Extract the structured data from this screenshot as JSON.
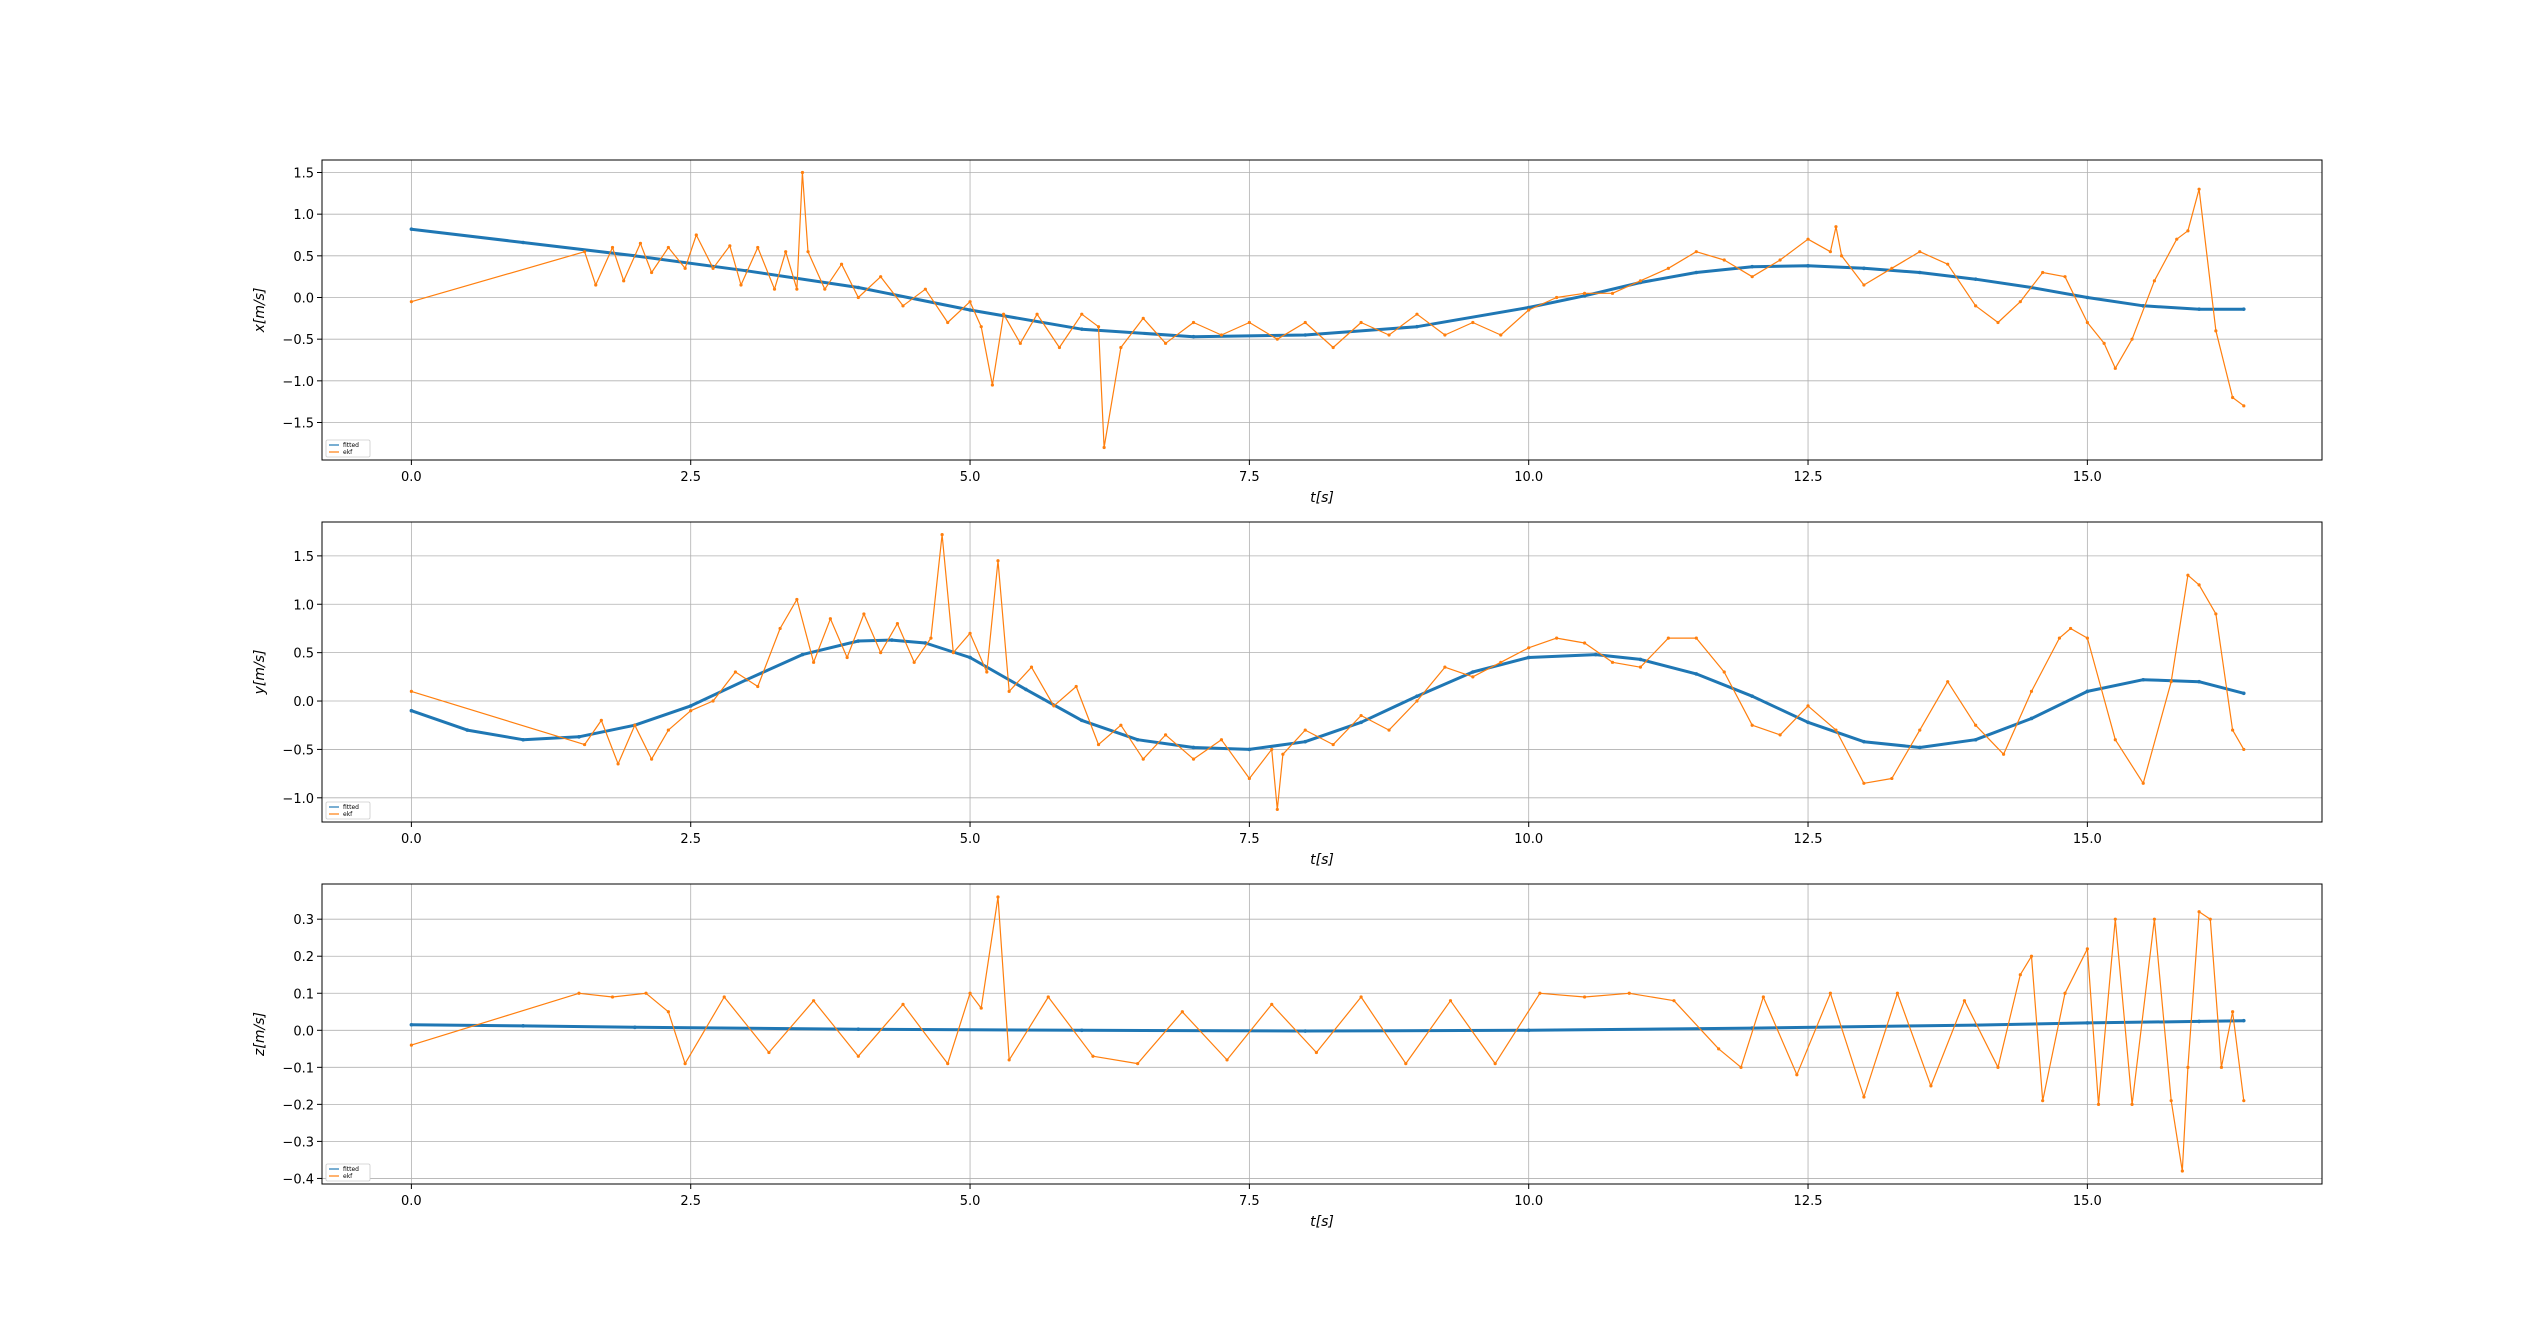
{
  "chart_data": [
    {
      "type": "line",
      "xlabel": "t[s]",
      "ylabel": "x[m/s]",
      "xlim": [
        -0.8,
        17.1
      ],
      "ylim": [
        -1.95,
        1.65
      ],
      "xticks": [
        0.0,
        2.5,
        5.0,
        7.5,
        10.0,
        12.5,
        15.0
      ],
      "xtick_labels": [
        "0.0",
        "2.5",
        "5.0",
        "7.5",
        "10.0",
        "12.5",
        "15.0"
      ],
      "yticks": [
        -1.5,
        -1.0,
        -0.5,
        0.0,
        0.5,
        1.0,
        1.5
      ],
      "ytick_labels": [
        "−1.5",
        "−1.0",
        "−0.5",
        "0.0",
        "0.5",
        "1.0",
        "1.5"
      ],
      "grid": true,
      "legend_position": "lower-left",
      "series": [
        {
          "name": "fitted",
          "color": "#1f77b4",
          "x": [
            0.0,
            1.0,
            2.0,
            3.0,
            4.0,
            5.0,
            6.0,
            7.0,
            8.0,
            9.0,
            10.0,
            10.5,
            11.0,
            11.5,
            12.0,
            12.5,
            13.0,
            13.5,
            14.0,
            14.5,
            15.0,
            15.5,
            16.0,
            16.4
          ],
          "y": [
            0.82,
            0.66,
            0.5,
            0.32,
            0.12,
            -0.15,
            -0.38,
            -0.47,
            -0.45,
            -0.35,
            -0.12,
            0.02,
            0.18,
            0.3,
            0.37,
            0.38,
            0.35,
            0.3,
            0.22,
            0.12,
            0.0,
            -0.1,
            -0.14,
            -0.14
          ]
        },
        {
          "name": "ekf",
          "color": "#ff7f0e",
          "x": [
            0.0,
            1.55,
            1.65,
            1.8,
            1.9,
            2.05,
            2.15,
            2.3,
            2.45,
            2.55,
            2.7,
            2.85,
            2.95,
            3.1,
            3.25,
            3.35,
            3.45,
            3.5,
            3.55,
            3.7,
            3.85,
            4.0,
            4.2,
            4.4,
            4.6,
            4.8,
            5.0,
            5.1,
            5.2,
            5.3,
            5.45,
            5.6,
            5.8,
            6.0,
            6.15,
            6.2,
            6.35,
            6.55,
            6.75,
            7.0,
            7.25,
            7.5,
            7.75,
            8.0,
            8.25,
            8.5,
            8.75,
            9.0,
            9.25,
            9.5,
            9.75,
            10.0,
            10.25,
            10.5,
            10.75,
            11.0,
            11.25,
            11.5,
            11.75,
            12.0,
            12.25,
            12.5,
            12.7,
            12.75,
            12.8,
            13.0,
            13.25,
            13.5,
            13.75,
            14.0,
            14.2,
            14.4,
            14.6,
            14.8,
            15.0,
            15.15,
            15.25,
            15.4,
            15.6,
            15.8,
            15.9,
            16.0,
            16.15,
            16.3,
            16.4
          ],
          "y": [
            -0.05,
            0.55,
            0.15,
            0.6,
            0.2,
            0.65,
            0.3,
            0.6,
            0.35,
            0.75,
            0.35,
            0.62,
            0.15,
            0.6,
            0.1,
            0.55,
            0.1,
            1.5,
            0.55,
            0.1,
            0.4,
            0.0,
            0.25,
            -0.1,
            0.1,
            -0.3,
            -0.05,
            -0.35,
            -1.05,
            -0.2,
            -0.55,
            -0.2,
            -0.6,
            -0.2,
            -0.35,
            -1.8,
            -0.6,
            -0.25,
            -0.55,
            -0.3,
            -0.45,
            -0.3,
            -0.5,
            -0.3,
            -0.6,
            -0.3,
            -0.45,
            -0.2,
            -0.45,
            -0.3,
            -0.45,
            -0.15,
            0.0,
            0.05,
            0.05,
            0.2,
            0.35,
            0.55,
            0.45,
            0.25,
            0.45,
            0.7,
            0.55,
            0.85,
            0.5,
            0.15,
            0.35,
            0.55,
            0.4,
            -0.1,
            -0.3,
            -0.05,
            0.3,
            0.25,
            -0.3,
            -0.55,
            -0.85,
            -0.5,
            0.2,
            0.7,
            0.8,
            1.3,
            -0.4,
            -1.2,
            -1.3
          ]
        }
      ]
    },
    {
      "type": "line",
      "xlabel": "t[s]",
      "ylabel": "y[m/s]",
      "xlim": [
        -0.8,
        17.1
      ],
      "ylim": [
        -1.25,
        1.85
      ],
      "xticks": [
        0.0,
        2.5,
        5.0,
        7.5,
        10.0,
        12.5,
        15.0
      ],
      "xtick_labels": [
        "0.0",
        "2.5",
        "5.0",
        "7.5",
        "10.0",
        "12.5",
        "15.0"
      ],
      "yticks": [
        -1.0,
        -0.5,
        0.0,
        0.5,
        1.0,
        1.5
      ],
      "ytick_labels": [
        "−1.0",
        "−0.5",
        "0.0",
        "0.5",
        "1.0",
        "1.5"
      ],
      "grid": true,
      "legend_position": "lower-left",
      "series": [
        {
          "name": "fitted",
          "color": "#1f77b4",
          "x": [
            0.0,
            0.5,
            1.0,
            1.5,
            2.0,
            2.5,
            3.0,
            3.5,
            4.0,
            4.3,
            4.6,
            5.0,
            5.5,
            6.0,
            6.5,
            7.0,
            7.5,
            8.0,
            8.5,
            9.0,
            9.5,
            10.0,
            10.6,
            11.0,
            11.5,
            12.0,
            12.5,
            13.0,
            13.5,
            14.0,
            14.5,
            15.0,
            15.5,
            16.0,
            16.4
          ],
          "y": [
            -0.1,
            -0.3,
            -0.4,
            -0.37,
            -0.25,
            -0.05,
            0.22,
            0.48,
            0.62,
            0.63,
            0.6,
            0.45,
            0.12,
            -0.2,
            -0.4,
            -0.48,
            -0.5,
            -0.42,
            -0.22,
            0.05,
            0.3,
            0.45,
            0.48,
            0.43,
            0.28,
            0.05,
            -0.22,
            -0.42,
            -0.48,
            -0.4,
            -0.18,
            0.1,
            0.22,
            0.2,
            0.08
          ]
        },
        {
          "name": "ekf",
          "color": "#ff7f0e",
          "x": [
            0.0,
            1.55,
            1.7,
            1.85,
            2.0,
            2.15,
            2.3,
            2.5,
            2.7,
            2.9,
            3.1,
            3.3,
            3.45,
            3.6,
            3.75,
            3.9,
            4.05,
            4.2,
            4.35,
            4.5,
            4.65,
            4.75,
            4.85,
            5.0,
            5.15,
            5.25,
            5.35,
            5.55,
            5.75,
            5.95,
            6.15,
            6.35,
            6.55,
            6.75,
            7.0,
            7.25,
            7.5,
            7.7,
            7.75,
            7.8,
            8.0,
            8.25,
            8.5,
            8.75,
            9.0,
            9.25,
            9.5,
            9.75,
            10.0,
            10.25,
            10.5,
            10.75,
            11.0,
            11.25,
            11.5,
            11.75,
            12.0,
            12.25,
            12.5,
            12.75,
            13.0,
            13.25,
            13.5,
            13.75,
            14.0,
            14.25,
            14.5,
            14.75,
            14.85,
            15.0,
            15.25,
            15.5,
            15.75,
            15.9,
            16.0,
            16.15,
            16.3,
            16.4
          ],
          "y": [
            0.1,
            -0.45,
            -0.2,
            -0.65,
            -0.25,
            -0.6,
            -0.3,
            -0.1,
            0.0,
            0.3,
            0.15,
            0.75,
            1.05,
            0.4,
            0.85,
            0.45,
            0.9,
            0.5,
            0.8,
            0.4,
            0.65,
            1.72,
            0.5,
            0.7,
            0.3,
            1.45,
            0.1,
            0.35,
            -0.05,
            0.15,
            -0.45,
            -0.25,
            -0.6,
            -0.35,
            -0.6,
            -0.4,
            -0.8,
            -0.5,
            -1.12,
            -0.55,
            -0.3,
            -0.45,
            -0.15,
            -0.3,
            0.0,
            0.35,
            0.25,
            0.4,
            0.55,
            0.65,
            0.6,
            0.4,
            0.35,
            0.65,
            0.65,
            0.3,
            -0.25,
            -0.35,
            -0.05,
            -0.3,
            -0.85,
            -0.8,
            -0.3,
            0.2,
            -0.25,
            -0.55,
            0.1,
            0.65,
            0.75,
            0.65,
            -0.4,
            -0.85,
            0.2,
            1.3,
            1.2,
            0.9,
            -0.3,
            -0.5
          ]
        }
      ]
    },
    {
      "type": "line",
      "xlabel": "t[s]",
      "ylabel": "z[m/s]",
      "xlim": [
        -0.8,
        17.1
      ],
      "ylim": [
        -0.415,
        0.395
      ],
      "xticks": [
        0.0,
        2.5,
        5.0,
        7.5,
        10.0,
        12.5,
        15.0
      ],
      "xtick_labels": [
        "0.0",
        "2.5",
        "5.0",
        "7.5",
        "10.0",
        "12.5",
        "15.0"
      ],
      "yticks": [
        -0.4,
        -0.3,
        -0.2,
        -0.1,
        0.0,
        0.1,
        0.2,
        0.3
      ],
      "ytick_labels": [
        "−0.4",
        "−0.3",
        "−0.2",
        "−0.1",
        "0.0",
        "0.1",
        "0.2",
        "0.3"
      ],
      "grid": true,
      "legend_position": "lower-left",
      "series": [
        {
          "name": "fitted",
          "color": "#1f77b4",
          "x": [
            0.0,
            1.0,
            2.0,
            4.0,
            6.0,
            8.0,
            10.0,
            12.0,
            14.0,
            15.0,
            16.0,
            16.4
          ],
          "y": [
            0.015,
            0.012,
            0.008,
            0.003,
            0.0,
            -0.002,
            0.0,
            0.006,
            0.014,
            0.02,
            0.024,
            0.026
          ]
        },
        {
          "name": "ekf",
          "color": "#ff7f0e",
          "x": [
            0.0,
            1.5,
            1.8,
            2.1,
            2.3,
            2.45,
            2.8,
            3.2,
            3.6,
            4.0,
            4.4,
            4.8,
            5.0,
            5.1,
            5.25,
            5.35,
            5.7,
            6.1,
            6.5,
            6.9,
            7.3,
            7.7,
            8.1,
            8.5,
            8.9,
            9.3,
            9.7,
            10.1,
            10.5,
            10.9,
            11.3,
            11.7,
            11.9,
            12.1,
            12.4,
            12.7,
            13.0,
            13.3,
            13.6,
            13.9,
            14.2,
            14.4,
            14.5,
            14.6,
            14.8,
            15.0,
            15.1,
            15.25,
            15.4,
            15.6,
            15.75,
            15.85,
            15.9,
            16.0,
            16.1,
            16.2,
            16.3,
            16.4
          ],
          "y": [
            -0.04,
            0.1,
            0.09,
            0.1,
            0.05,
            -0.09,
            0.09,
            -0.06,
            0.08,
            -0.07,
            0.07,
            -0.09,
            0.1,
            0.06,
            0.36,
            -0.08,
            0.09,
            -0.07,
            -0.09,
            0.05,
            -0.08,
            0.07,
            -0.06,
            0.09,
            -0.09,
            0.08,
            -0.09,
            0.1,
            0.09,
            0.1,
            0.08,
            -0.05,
            -0.1,
            0.09,
            -0.12,
            0.1,
            -0.18,
            0.1,
            -0.15,
            0.08,
            -0.1,
            0.15,
            0.2,
            -0.19,
            0.1,
            0.22,
            -0.2,
            0.3,
            -0.2,
            0.3,
            -0.19,
            -0.38,
            -0.1,
            0.32,
            0.3,
            -0.1,
            0.05,
            -0.19
          ]
        }
      ]
    }
  ]
}
